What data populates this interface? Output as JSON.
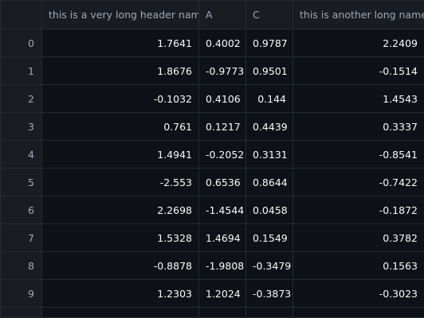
{
  "table": {
    "columns": [
      {
        "label": ""
      },
      {
        "label": "this is a very long header name"
      },
      {
        "label": "A"
      },
      {
        "label": "C"
      },
      {
        "label": "this is another long name"
      }
    ],
    "rows": [
      {
        "index": "0",
        "cells": [
          "1.7641",
          "0.4002",
          "0.9787",
          "2.2409"
        ]
      },
      {
        "index": "1",
        "cells": [
          "1.8676",
          "-0.9773",
          "0.9501",
          "-0.1514"
        ]
      },
      {
        "index": "2",
        "cells": [
          "-0.1032",
          "0.4106",
          "0.144",
          "1.4543"
        ]
      },
      {
        "index": "3",
        "cells": [
          "0.761",
          "0.1217",
          "0.4439",
          "0.3337"
        ]
      },
      {
        "index": "4",
        "cells": [
          "1.4941",
          "-0.2052",
          "0.3131",
          "-0.8541"
        ]
      },
      {
        "index": "5",
        "cells": [
          "-2.553",
          "0.6536",
          "0.8644",
          "-0.7422"
        ]
      },
      {
        "index": "6",
        "cells": [
          "2.2698",
          "-1.4544",
          "0.0458",
          "-0.1872"
        ]
      },
      {
        "index": "7",
        "cells": [
          "1.5328",
          "1.4694",
          "0.1549",
          "0.3782"
        ]
      },
      {
        "index": "8",
        "cells": [
          "-0.8878",
          "-1.9808",
          "-0.3479",
          "0.1563"
        ]
      },
      {
        "index": "9",
        "cells": [
          "1.2303",
          "1.2024",
          "-0.3873",
          "-0.3023"
        ]
      }
    ]
  },
  "colors": {
    "background": "#0e1117",
    "header_background": "#1a1c24",
    "grid_line": "#262a33",
    "text": "#fafafa",
    "muted_text": "#a3a8b8"
  }
}
